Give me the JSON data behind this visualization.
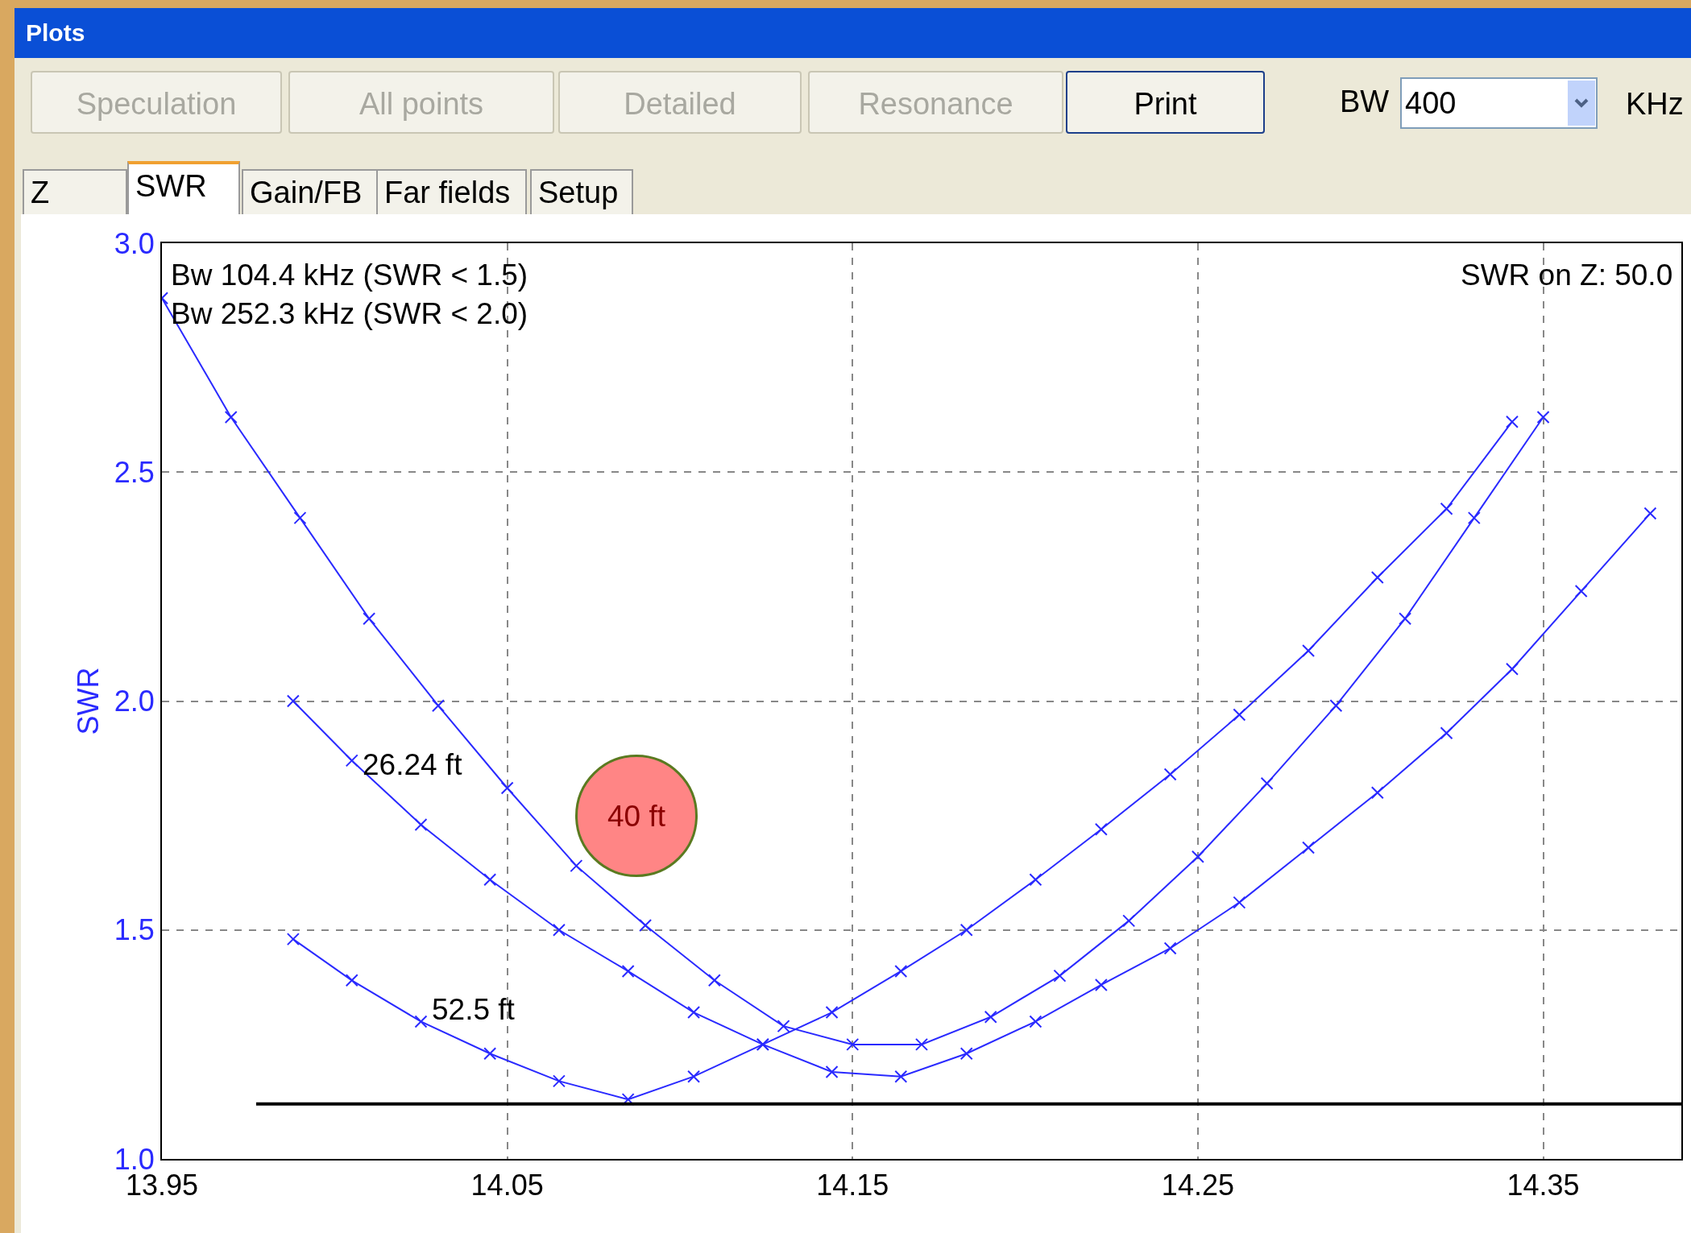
{
  "chart_data": {
    "type": "line",
    "ylabel": "SWR",
    "marker": "cross",
    "line_style": "solid",
    "grid": true,
    "legend": false,
    "xlim": [
      13.95,
      14.39
    ],
    "xticks": [
      13.95,
      14.05,
      14.15,
      14.25,
      14.35
    ],
    "ylim": [
      1.0,
      3.0
    ],
    "yticks": [
      {
        "value": 1,
        "label": "1.0"
      },
      {
        "value": 1.5,
        "label": "1.5"
      },
      {
        "value": 2,
        "label": "2.0"
      },
      {
        "value": 2.5,
        "label": "2.5"
      },
      {
        "value": 3,
        "label": "3.0"
      }
    ],
    "series": [
      {
        "name": "40 ft",
        "color": "#2a2aff",
        "x": [
          13.95,
          13.97,
          13.99,
          14.01,
          14.03,
          14.05,
          14.07,
          14.09,
          14.11,
          14.13,
          14.15,
          14.17,
          14.19,
          14.21,
          14.23,
          14.25,
          14.27,
          14.29,
          14.31,
          14.33,
          14.35
        ],
        "values": [
          2.88,
          2.62,
          2.4,
          2.18,
          1.99,
          1.81,
          1.64,
          1.51,
          1.39,
          1.29,
          1.25,
          1.25,
          1.31,
          1.4,
          1.52,
          1.66,
          1.82,
          1.99,
          2.18,
          2.4,
          2.62
        ]
      },
      {
        "name": "26.24 ft",
        "color": "#2a2aff",
        "x": [
          13.988,
          14.005,
          14.025,
          14.045,
          14.065,
          14.085,
          14.104,
          14.124,
          14.144,
          14.164,
          14.183,
          14.203,
          14.222,
          14.242,
          14.262,
          14.282,
          14.302,
          14.322,
          14.341,
          14.361,
          14.381
        ],
        "values": [
          2.0,
          1.87,
          1.73,
          1.61,
          1.5,
          1.41,
          1.32,
          1.25,
          1.19,
          1.18,
          1.23,
          1.3,
          1.38,
          1.46,
          1.56,
          1.68,
          1.8,
          1.93,
          2.07,
          2.24,
          2.41
        ]
      },
      {
        "name": "52.5 ft",
        "color": "#2a2aff",
        "x": [
          13.988,
          14.005,
          14.025,
          14.045,
          14.065,
          14.085,
          14.104,
          14.124,
          14.144,
          14.164,
          14.183,
          14.203,
          14.222,
          14.242,
          14.262,
          14.282,
          14.302,
          14.322,
          14.341
        ],
        "values": [
          1.48,
          1.39,
          1.3,
          1.23,
          1.17,
          1.13,
          1.18,
          1.25,
          1.32,
          1.41,
          1.5,
          1.61,
          1.72,
          1.84,
          1.97,
          2.11,
          2.27,
          2.42,
          2.61
        ]
      }
    ],
    "ref_lines": [
      {
        "axis": "y",
        "value": 1.12,
        "color": "#000000"
      }
    ],
    "annotations": [
      "Plots",
      "Speculation",
      "All points",
      "Detailed",
      "Resonance",
      "Print",
      "BW",
      "400",
      "KHz",
      "Z",
      "SWR",
      "Gain/FB",
      "Far fields",
      "Setup",
      "Bw 104.4 kHz (SWR < 1.5)",
      "Bw 252.3 kHz (SWR < 2.0)",
      "SWR on Z: 50.0"
    ]
  }
}
